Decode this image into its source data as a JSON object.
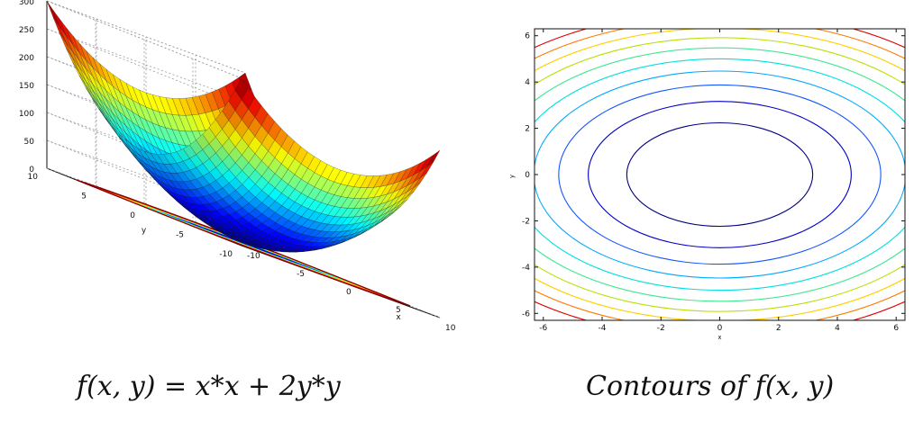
{
  "captions": {
    "left": "f(x, y) = x*x + 2y*y",
    "right": "Contours of f(x, y)"
  },
  "chart_data": [
    {
      "type": "surface",
      "function": "x*x + 2*y*y",
      "xlabel": "x",
      "ylabel": "y",
      "xlim": [
        -10,
        10
      ],
      "ylim": [
        -10,
        10
      ],
      "zlim": [
        0,
        300
      ],
      "x_ticks": [
        "-10",
        "-5",
        "0",
        "5",
        "10"
      ],
      "y_ticks": [
        "-10",
        "-5",
        "0",
        "5",
        "10"
      ],
      "z_ticks": [
        "0",
        "50",
        "100",
        "150",
        "200",
        "250",
        "300"
      ],
      "grid": true,
      "colormap": "jet",
      "projected_contours": true
    },
    {
      "type": "contour",
      "function": "x*x + 2*y*y",
      "xlabel": "x",
      "ylabel": "y",
      "xlim": [
        -6.3,
        6.3
      ],
      "ylim": [
        -6.3,
        6.3
      ],
      "x_ticks": [
        "-6",
        "-4",
        "-2",
        "0",
        "2",
        "4",
        "6"
      ],
      "y_ticks": [
        "-6",
        "-4",
        "-2",
        "0",
        "2",
        "4",
        "6"
      ],
      "levels": [
        10,
        20,
        30,
        40,
        50,
        60,
        70,
        80,
        90,
        100
      ],
      "level_colors": [
        "#000080",
        "#0000c8",
        "#1456ff",
        "#00a8ff",
        "#00e0e0",
        "#40e890",
        "#b8e000",
        "#ffd000",
        "#ff7800",
        "#e00000"
      ],
      "colormap": "jet",
      "grid": false
    }
  ]
}
